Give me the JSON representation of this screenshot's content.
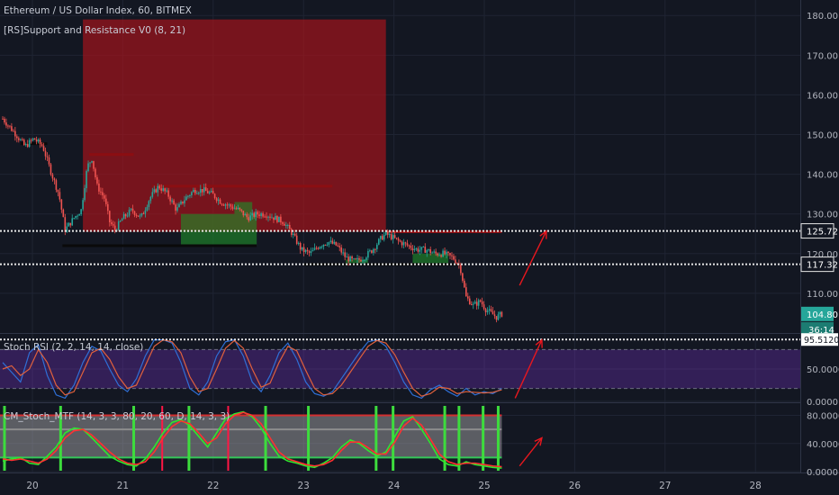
{
  "chart_data": [
    {
      "type": "candlestick",
      "title": "Ethereum / US Dollar Index, 60, BITMEX",
      "indicator": "[RS]Support and Resistance V0 (8, 21)",
      "ylim": [
        100,
        183
      ],
      "yticks": [
        {
          "value": 110,
          "label": "110.00"
        },
        {
          "value": 120,
          "label": "120.00"
        },
        {
          "value": 130,
          "label": "130.00"
        },
        {
          "value": 140,
          "label": "140.00"
        },
        {
          "value": 150,
          "label": "150.00"
        },
        {
          "value": 160,
          "label": "160.00"
        },
        {
          "value": 170,
          "label": "170.00"
        },
        {
          "value": 180,
          "label": "180.00"
        }
      ],
      "price_marks": [
        {
          "value": 125.72,
          "label": "125.72"
        },
        {
          "value": 117.32,
          "label": "117.32"
        }
      ],
      "last_price": {
        "value": 104.8,
        "label": "104.80",
        "countdown": "36:14"
      },
      "anchors": [
        {
          "t": 0,
          "p": 154
        },
        {
          "t": 1.5,
          "p": 150
        },
        {
          "t": 2.5,
          "p": 147
        },
        {
          "t": 3.5,
          "p": 149
        },
        {
          "t": 4.5,
          "p": 147
        },
        {
          "t": 5.5,
          "p": 140
        },
        {
          "t": 6.3,
          "p": 135
        },
        {
          "t": 7,
          "p": 126
        },
        {
          "t": 8,
          "p": 129
        },
        {
          "t": 8.8,
          "p": 131
        },
        {
          "t": 9.5,
          "p": 142
        },
        {
          "t": 10,
          "p": 144
        },
        {
          "t": 10.6,
          "p": 137
        },
        {
          "t": 11.4,
          "p": 134
        },
        {
          "t": 12,
          "p": 128
        },
        {
          "t": 12.6,
          "p": 126
        },
        {
          "t": 13.5,
          "p": 129
        },
        {
          "t": 14.5,
          "p": 131
        },
        {
          "t": 15.5,
          "p": 129
        },
        {
          "t": 16.5,
          "p": 134
        },
        {
          "t": 17.5,
          "p": 137
        },
        {
          "t": 18.5,
          "p": 135
        },
        {
          "t": 19.5,
          "p": 131
        },
        {
          "t": 20.5,
          "p": 134
        },
        {
          "t": 21.5,
          "p": 136
        },
        {
          "t": 22.5,
          "p": 136
        },
        {
          "t": 23.5,
          "p": 135
        },
        {
          "t": 24.5,
          "p": 133
        },
        {
          "t": 25.5,
          "p": 132
        },
        {
          "t": 26.5,
          "p": 131
        },
        {
          "t": 27.5,
          "p": 129
        },
        {
          "t": 28.5,
          "p": 130
        },
        {
          "t": 29.5,
          "p": 130
        },
        {
          "t": 30.5,
          "p": 129
        },
        {
          "t": 31.5,
          "p": 128
        },
        {
          "t": 32.5,
          "p": 125
        },
        {
          "t": 33.5,
          "p": 121
        },
        {
          "t": 34.5,
          "p": 120
        },
        {
          "t": 35.5,
          "p": 122
        },
        {
          "t": 36.5,
          "p": 123
        },
        {
          "t": 37.5,
          "p": 122
        },
        {
          "t": 38.5,
          "p": 119
        },
        {
          "t": 39.5,
          "p": 118
        },
        {
          "t": 40.5,
          "p": 119
        },
        {
          "t": 41.5,
          "p": 121
        },
        {
          "t": 42.5,
          "p": 124
        },
        {
          "t": 43,
          "p": 125
        },
        {
          "t": 43.8,
          "p": 124
        },
        {
          "t": 44.5,
          "p": 123
        },
        {
          "t": 45.5,
          "p": 122
        },
        {
          "t": 46.5,
          "p": 121
        },
        {
          "t": 47.5,
          "p": 121
        },
        {
          "t": 48.5,
          "p": 120
        },
        {
          "t": 49.5,
          "p": 120
        },
        {
          "t": 50.5,
          "p": 119
        },
        {
          "t": 51.3,
          "p": 117
        },
        {
          "t": 52,
          "p": 109
        },
        {
          "t": 52.8,
          "p": 107
        },
        {
          "t": 53.6,
          "p": 108
        },
        {
          "t": 54.2,
          "p": 106
        },
        {
          "t": 54.8,
          "p": 105
        },
        {
          "t": 55.4,
          "p": 104
        },
        {
          "t": 56,
          "p": 104.8
        }
      ],
      "zones": [
        {
          "kind": "resistance",
          "t0": 9,
          "t1": 43,
          "p0": 125.5,
          "p1": 179
        },
        {
          "kind": "support",
          "t0": 20,
          "t1": 28.5,
          "p0": 122,
          "p1": 130
        },
        {
          "kind": "support",
          "t0": 26,
          "t1": 28,
          "p0": 130,
          "p1": 133
        },
        {
          "kind": "support",
          "t0": 38.5,
          "t1": 41,
          "p0": 117.5,
          "p1": 118.5
        },
        {
          "kind": "support",
          "t0": 46,
          "t1": 50,
          "p0": 117.5,
          "p1": 120
        }
      ],
      "levels": [
        {
          "kind": "resistance",
          "t0": 9.7,
          "t1": 14.7,
          "p": 145
        },
        {
          "kind": "resistance",
          "t0": 16.8,
          "t1": 37,
          "p": 137
        },
        {
          "kind": "resistance",
          "t0": 43,
          "t1": 56,
          "p": 125.5
        },
        {
          "kind": "support",
          "t0": 2,
          "t1": 5,
          "p": 147.7
        },
        {
          "kind": "support",
          "t0": 6.7,
          "t1": 28.5,
          "p": 122
        },
        {
          "kind": "support",
          "t0": 33.7,
          "t1": 51.5,
          "p": 117.3
        }
      ],
      "arrows": [
        [
          58,
          112,
          61,
          125.7
        ]
      ],
      "xticks": [
        {
          "label": "20"
        },
        {
          "label": "21"
        },
        {
          "label": "22"
        },
        {
          "label": "23"
        },
        {
          "label": "24"
        },
        {
          "label": "25"
        },
        {
          "label": "26"
        },
        {
          "label": "27"
        },
        {
          "label": "28"
        }
      ]
    },
    {
      "type": "line",
      "title": "Stoch RSI (2, 2, 14, 14, close)",
      "ylim": [
        0,
        100
      ],
      "yticks": [
        {
          "value": 0,
          "label": "0.0000"
        },
        {
          "value": 50,
          "label": "50.0000"
        }
      ],
      "current": {
        "value": 95.512,
        "label": "95.5120"
      },
      "band": [
        20,
        80
      ],
      "series": [
        {
          "values": [
            60,
            45,
            30,
            75,
            88,
            40,
            10,
            5,
            25,
            60,
            85,
            78,
            50,
            25,
            15,
            35,
            70,
            95,
            95,
            90,
            60,
            20,
            10,
            30,
            70,
            92,
            95,
            70,
            30,
            15,
            40,
            75,
            90,
            65,
            30,
            12,
            8,
            15,
            35,
            55,
            75,
            92,
            95,
            85,
            60,
            30,
            10,
            5,
            18,
            25,
            15,
            8,
            20,
            10,
            15,
            12,
            20
          ]
        },
        {
          "values": [
            50,
            55,
            40,
            50,
            80,
            60,
            25,
            10,
            15,
            45,
            75,
            82,
            65,
            38,
            20,
            25,
            55,
            85,
            95,
            92,
            75,
            38,
            15,
            20,
            50,
            82,
            94,
            82,
            50,
            22,
            28,
            60,
            85,
            78,
            48,
            20,
            10,
            12,
            25,
            45,
            65,
            85,
            94,
            90,
            72,
            45,
            20,
            8,
            12,
            22,
            20,
            12,
            15,
            14,
            13,
            14,
            18
          ]
        }
      ],
      "arrows": [
        [
          57.5,
          5,
          60.5,
          95
        ]
      ]
    },
    {
      "type": "line",
      "title": "CM_Stoch_MTF (14, 3, 3, 80, 20, 60, D, 14, 3, 3)",
      "ylim": [
        0,
        96
      ],
      "yticks": [
        {
          "value": 0,
          "label": "0.0000"
        },
        {
          "value": 40,
          "label": "40.0000"
        },
        {
          "value": 80,
          "label": "80.0000"
        }
      ],
      "series": [
        {
          "values": [
            15,
            18,
            20,
            12,
            10,
            22,
            35,
            55,
            62,
            60,
            48,
            35,
            22,
            15,
            10,
            8,
            18,
            35,
            55,
            70,
            74,
            65,
            50,
            35,
            55,
            75,
            82,
            85,
            78,
            62,
            40,
            22,
            15,
            12,
            8,
            6,
            12,
            20,
            35,
            45,
            40,
            30,
            22,
            28,
            50,
            72,
            78,
            60,
            40,
            18,
            10,
            8,
            14,
            10,
            8,
            6,
            5
          ]
        },
        {
          "values": [
            18,
            16,
            18,
            15,
            12,
            18,
            30,
            48,
            58,
            60,
            52,
            40,
            28,
            18,
            12,
            10,
            14,
            28,
            48,
            64,
            72,
            68,
            55,
            40,
            48,
            68,
            80,
            84,
            80,
            68,
            48,
            28,
            18,
            14,
            10,
            8,
            10,
            16,
            30,
            42,
            42,
            34,
            25,
            25,
            42,
            65,
            76,
            66,
            46,
            25,
            14,
            10,
            12,
            12,
            10,
            8,
            7
          ]
        }
      ],
      "arrows": [
        [
          58,
          8,
          60.5,
          48
        ]
      ]
    }
  ]
}
